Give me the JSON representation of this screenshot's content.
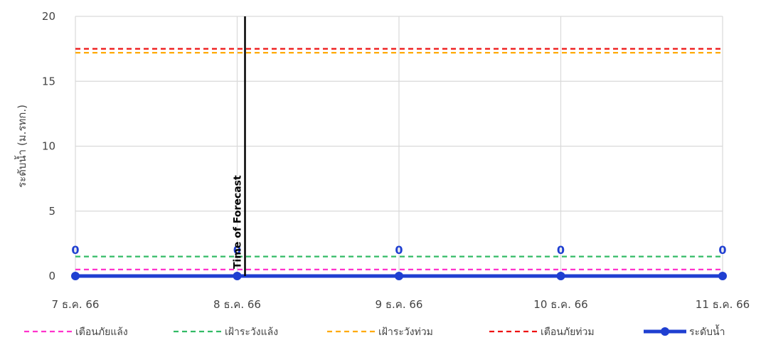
{
  "chart_data": {
    "type": "line",
    "x": [
      "7 ธ.ค. 66",
      "8 ธ.ค. 66",
      "9 ธ.ค. 66",
      "10 ธ.ค. 66",
      "11 ธ.ค. 66"
    ],
    "ylabel": "ระดับน้ำ (ม.รทก.)",
    "ylim": [
      0,
      20
    ],
    "yticks": [
      0,
      5,
      10,
      15,
      20
    ],
    "grid": true,
    "legend_position": "bottom",
    "series": [
      {
        "name": "เตือนภัยแล้ง",
        "style": "dashed",
        "color": "#ff33cc",
        "values": [
          0.5,
          0.5,
          0.5,
          0.5,
          0.5
        ]
      },
      {
        "name": "เฝ้าระวังแล้ง",
        "style": "dashed",
        "color": "#33bb66",
        "values": [
          1.5,
          1.5,
          1.5,
          1.5,
          1.5
        ]
      },
      {
        "name": "เฝ้าระวังท่วม",
        "style": "dashed",
        "color": "#ffaa00",
        "values": [
          17.2,
          17.2,
          17.2,
          17.2,
          17.2
        ]
      },
      {
        "name": "เตือนภัยท่วม",
        "style": "dashed",
        "color": "#ee1111",
        "values": [
          17.5,
          17.5,
          17.5,
          17.5,
          17.5
        ]
      },
      {
        "name": "ระดับน้ำ",
        "style": "solid-marker",
        "color": "#1f3fd1",
        "values": [
          0,
          0,
          0,
          0,
          0
        ]
      }
    ],
    "data_labels": [
      "0",
      "0",
      "0",
      "0",
      "0"
    ],
    "annotation": {
      "text": "Time of Forecast",
      "x": "8 ธ.ค. 66"
    }
  }
}
